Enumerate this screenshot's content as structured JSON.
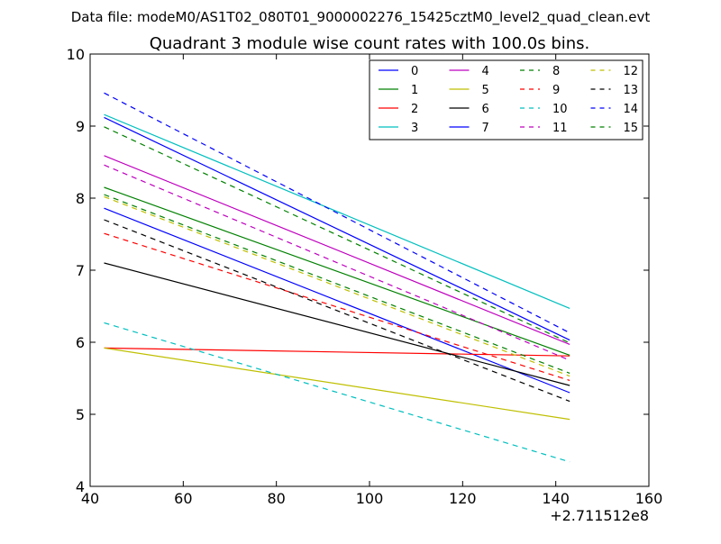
{
  "header": {
    "file_line": "Data file: modeM0/AS1T02_080T01_9000002276_15425cztM0_level2_quad_clean.evt"
  },
  "chart_data": {
    "type": "line",
    "title": "Quadrant 3 module wise count rates with 100.0s bins.",
    "xlabel": "",
    "ylabel": "",
    "x_offset_label": "+2.711512e8",
    "xlim": [
      40,
      160
    ],
    "ylim": [
      4,
      10
    ],
    "xticks": [
      "40",
      "60",
      "80",
      "100",
      "120",
      "140",
      "160"
    ],
    "yticks": [
      "4",
      "5",
      "6",
      "7",
      "8",
      "9",
      "10"
    ],
    "x": [
      43,
      143
    ],
    "legend_position": "upper-right",
    "series": [
      {
        "name": "0",
        "color": "#0000ff",
        "dash": "solid",
        "values": [
          7.86,
          5.3
        ]
      },
      {
        "name": "1",
        "color": "#008000",
        "dash": "solid",
        "values": [
          8.15,
          5.82
        ]
      },
      {
        "name": "2",
        "color": "#ff0000",
        "dash": "solid",
        "values": [
          5.92,
          5.81
        ]
      },
      {
        "name": "3",
        "color": "#00bfbf",
        "dash": "solid",
        "values": [
          9.16,
          6.47
        ]
      },
      {
        "name": "4",
        "color": "#bf00bf",
        "dash": "solid",
        "values": [
          8.59,
          5.97
        ]
      },
      {
        "name": "5",
        "color": "#bfbf00",
        "dash": "solid",
        "values": [
          5.92,
          4.93
        ]
      },
      {
        "name": "6",
        "color": "#000000",
        "dash": "solid",
        "values": [
          7.1,
          5.4
        ]
      },
      {
        "name": "7",
        "color": "#0000ff",
        "dash": "solid",
        "values": [
          9.12,
          6.03
        ]
      },
      {
        "name": "8",
        "color": "#008000",
        "dash": "dashed",
        "values": [
          8.05,
          5.57
        ]
      },
      {
        "name": "9",
        "color": "#ff0000",
        "dash": "dashed",
        "values": [
          7.51,
          5.47
        ]
      },
      {
        "name": "10",
        "color": "#00bfbf",
        "dash": "dashed",
        "values": [
          6.27,
          4.34
        ]
      },
      {
        "name": "11",
        "color": "#bf00bf",
        "dash": "dashed",
        "values": [
          8.46,
          5.75
        ]
      },
      {
        "name": "12",
        "color": "#bfbf00",
        "dash": "dashed",
        "values": [
          8.02,
          5.53
        ]
      },
      {
        "name": "13",
        "color": "#000000",
        "dash": "dashed",
        "values": [
          7.7,
          5.18
        ]
      },
      {
        "name": "14",
        "color": "#0000ff",
        "dash": "dashed",
        "values": [
          9.46,
          6.13
        ]
      },
      {
        "name": "15",
        "color": "#008000",
        "dash": "dashed",
        "values": [
          8.99,
          5.99
        ]
      }
    ]
  }
}
